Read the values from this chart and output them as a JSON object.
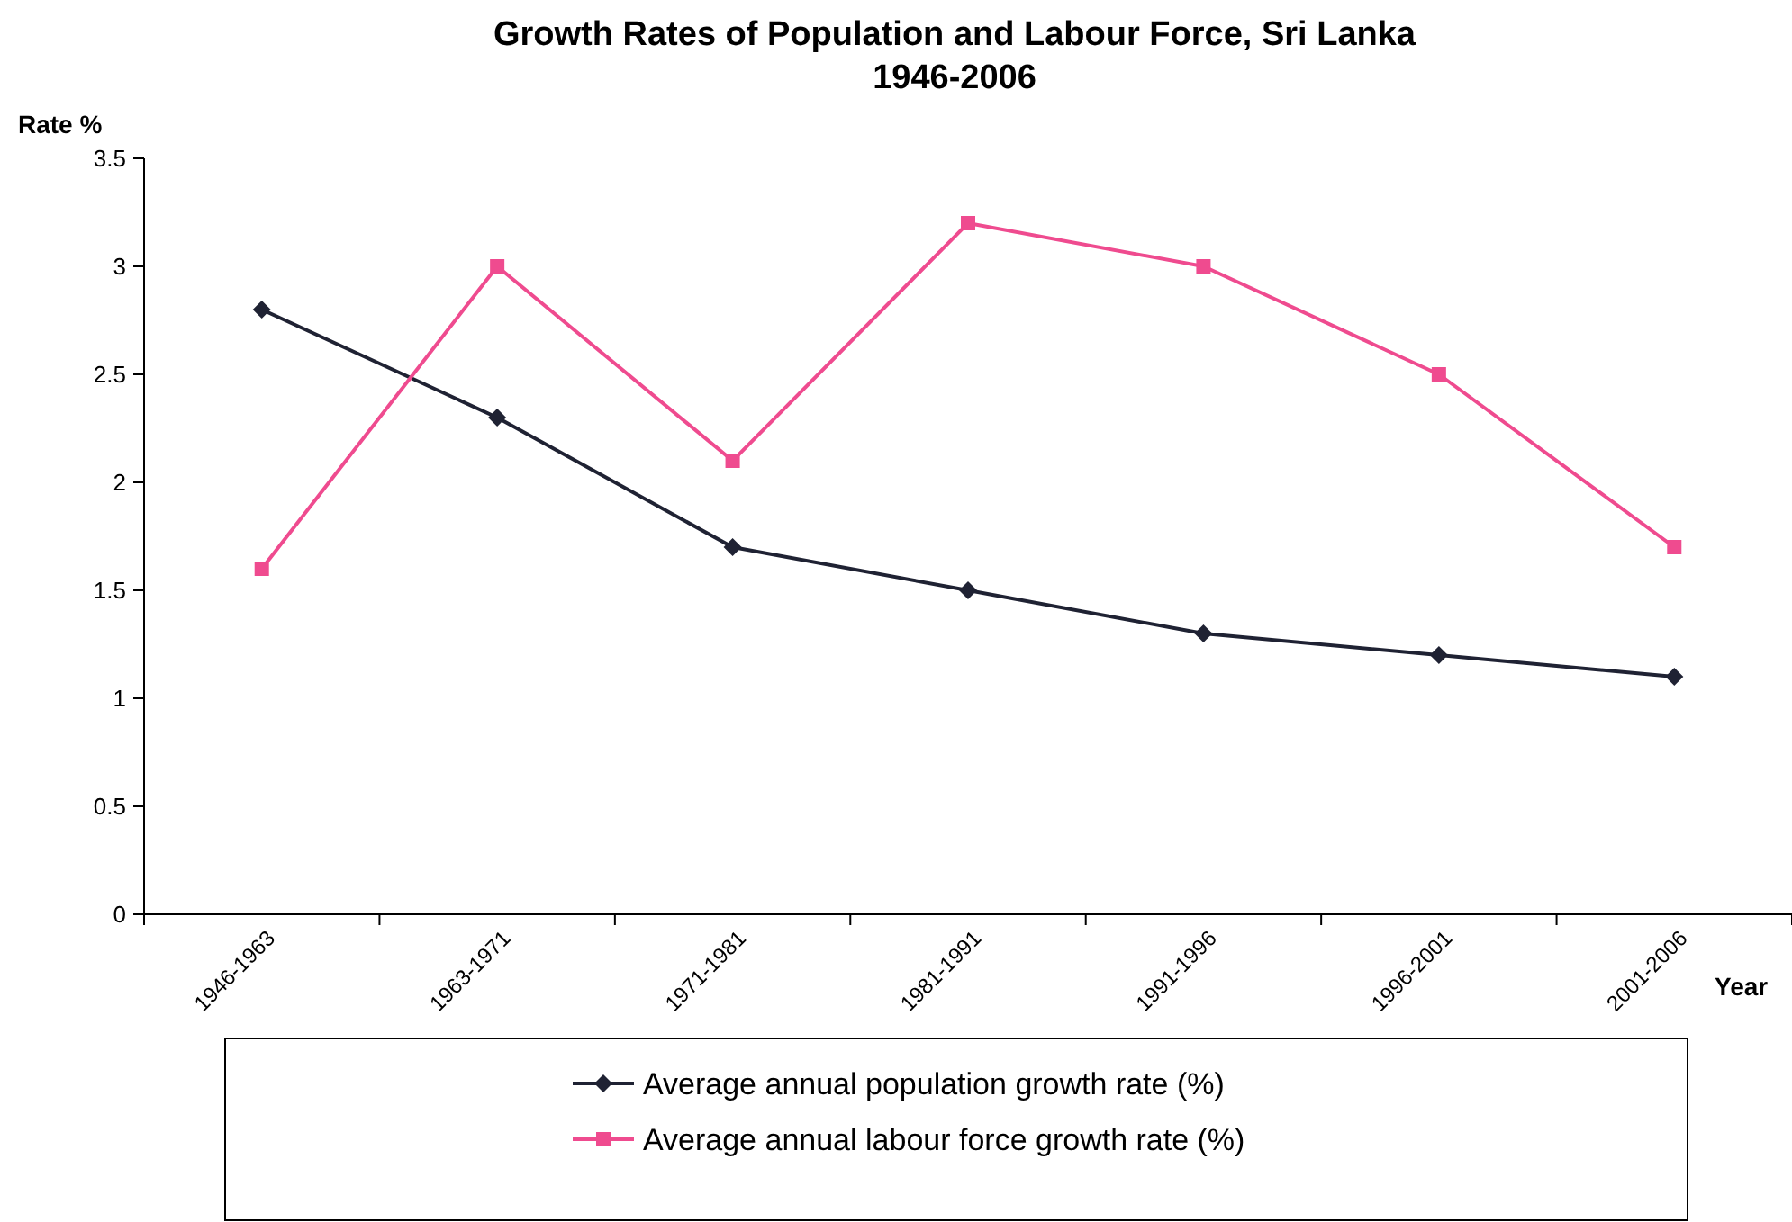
{
  "chart_data": {
    "type": "line",
    "title": "Growth Rates of Population and Labour Force, Sri Lanka\n1946-2006",
    "xlabel": "Year",
    "ylabel": "Rate %",
    "categories": [
      "1946-1963",
      "1963-1971",
      "1971-1981",
      "1981-1991",
      "1991-1996",
      "1996-2001",
      "2001-2006"
    ],
    "series": [
      {
        "name": "Average annual population growth rate (%)",
        "color": "#1f2233",
        "marker": "diamond",
        "values": [
          2.8,
          2.3,
          1.7,
          1.5,
          1.3,
          1.2,
          1.1
        ]
      },
      {
        "name": "Average annual labour force growth rate (%)",
        "color": "#ef4b8f",
        "marker": "square",
        "values": [
          1.6,
          3.0,
          2.1,
          3.2,
          3.0,
          2.5,
          1.7
        ]
      }
    ],
    "ylim": [
      0,
      3.5
    ],
    "yticks": [
      0,
      0.5,
      1,
      1.5,
      2,
      2.5,
      3,
      3.5
    ],
    "grid": false,
    "legend": "bottom",
    "line_style": "solid"
  }
}
